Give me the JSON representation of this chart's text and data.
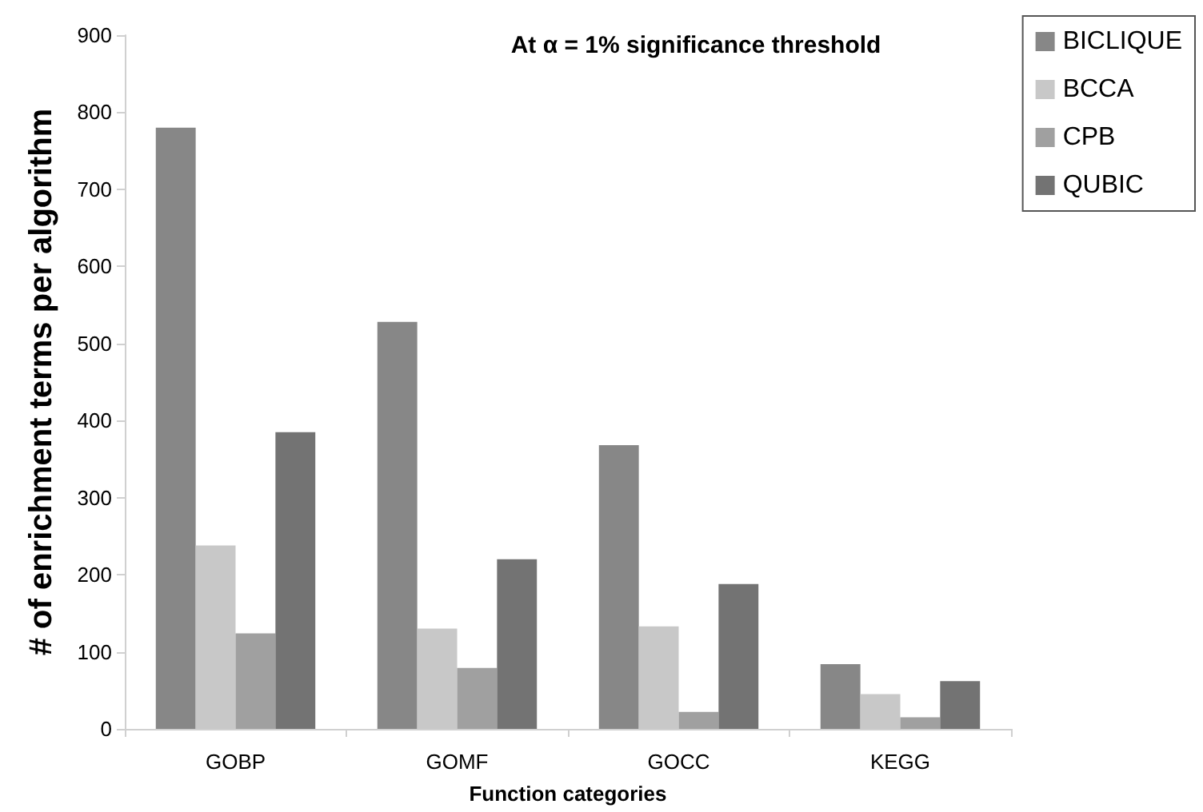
{
  "chart_data": {
    "type": "bar",
    "title": "At α = 1% significance threshold",
    "xlabel": "Function categories",
    "ylabel": "# of enrichment terms per algorithm",
    "categories": [
      "GOBP",
      "GOMF",
      "GOCC",
      "KEGG"
    ],
    "series": [
      {
        "name": "BICLIQUE",
        "color": "#878787",
        "values": [
          780,
          528,
          368,
          84
        ]
      },
      {
        "name": "BCCA",
        "color": "#c8c8c8",
        "values": [
          238,
          130,
          133,
          45
        ]
      },
      {
        "name": "CPB",
        "color": "#a0a0a0",
        "values": [
          124,
          79,
          22,
          15
        ]
      },
      {
        "name": "QUBIC",
        "color": "#737373",
        "values": [
          385,
          220,
          188,
          62
        ]
      }
    ],
    "ylim": [
      0,
      900
    ],
    "yticks": [
      0,
      100,
      200,
      300,
      400,
      500,
      600,
      700,
      800,
      900
    ],
    "grid": false,
    "legend": "top right"
  }
}
